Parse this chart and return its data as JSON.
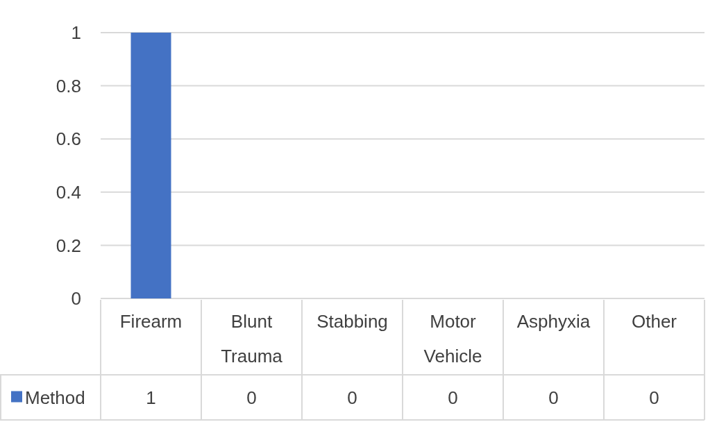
{
  "chart_data": {
    "type": "bar",
    "categories": [
      "Firearm",
      "Blunt Trauma",
      "Stabbing",
      "Motor Vehicle",
      "Asphyxia",
      "Other"
    ],
    "series": [
      {
        "name": "Method",
        "color": "#4472c4",
        "values": [
          1,
          0,
          0,
          0,
          0,
          0
        ]
      }
    ],
    "ylim": [
      0,
      1
    ],
    "yticks": [
      0,
      0.2,
      0.4,
      0.6,
      0.8,
      1
    ],
    "grid": "y",
    "data_labels": true,
    "legend": "bottom left"
  }
}
